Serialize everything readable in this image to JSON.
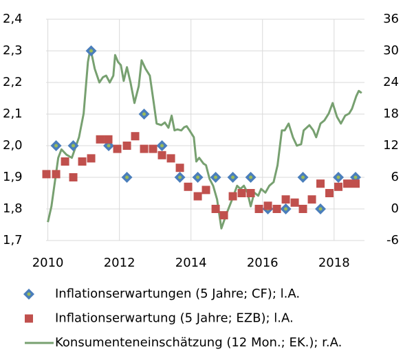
{
  "chart_data": {
    "type": "line",
    "xlim": [
      2009.95,
      2018.85
    ],
    "xticks": [
      2010,
      2012,
      2014,
      2016,
      2018
    ],
    "ylim": [
      1.7,
      2.4
    ],
    "yticks": [
      {
        "value": 1.7,
        "label": "1,7"
      },
      {
        "value": 1.8,
        "label": "1,8"
      },
      {
        "value": 1.9,
        "label": "1,9"
      },
      {
        "value": 2.0,
        "label": "2,0"
      },
      {
        "value": 2.1,
        "label": "2,1"
      },
      {
        "value": 2.2,
        "label": "2,2"
      },
      {
        "value": 2.3,
        "label": "2,3"
      },
      {
        "value": 2.4,
        "label": "2,4"
      }
    ],
    "y2lim": [
      -6,
      36
    ],
    "y2ticks": [
      -6,
      0,
      6,
      12,
      18,
      24,
      30,
      36
    ],
    "grid": true,
    "legend": "bottom",
    "series": [
      {
        "name": "Inflationserwartungen (5 Jahre; CF); l.A.",
        "color": "#4a7ebb",
        "marker": "diamond",
        "x": [
          2010.23,
          2010.71,
          2011.21,
          2011.7,
          2012.21,
          2012.69,
          2013.19,
          2013.69,
          2014.19,
          2014.69,
          2015.17,
          2015.67,
          2016.15,
          2016.65,
          2017.13,
          2017.62,
          2018.12,
          2018.6
        ],
        "values": [
          2.0,
          2.0,
          2.3,
          2.0,
          1.9,
          2.1,
          2.0,
          1.9,
          1.9,
          1.9,
          1.9,
          1.9,
          1.8,
          1.8,
          1.9,
          1.8,
          1.9,
          1.9
        ]
      },
      {
        "name": "Inflationserwartung (5 Jahre; EZB); l.A.",
        "color": "#c0504d",
        "marker": "square",
        "x": [
          2009.96,
          2010.23,
          2010.48,
          2010.71,
          2010.96,
          2011.21,
          2011.46,
          2011.69,
          2011.94,
          2012.21,
          2012.44,
          2012.69,
          2012.94,
          2013.19,
          2013.44,
          2013.69,
          2013.92,
          2014.19,
          2014.42,
          2014.69,
          2014.92,
          2015.17,
          2015.42,
          2015.67,
          2015.9,
          2016.15,
          2016.4,
          2016.65,
          2016.9,
          2017.13,
          2017.38,
          2017.62,
          2017.87,
          2018.12,
          2018.37,
          2018.6
        ],
        "values": [
          1.91,
          1.91,
          1.95,
          1.9,
          1.95,
          1.96,
          2.02,
          2.02,
          1.99,
          2.0,
          2.03,
          1.99,
          1.99,
          1.97,
          1.96,
          1.93,
          1.87,
          1.84,
          1.86,
          1.8,
          1.78,
          1.84,
          1.85,
          1.85,
          1.8,
          1.81,
          1.8,
          1.83,
          1.82,
          1.8,
          1.83,
          1.88,
          1.85,
          1.87,
          1.88,
          1.88
        ]
      },
      {
        "name": "Konsumenteneinschätzung (12 Mon.; EK.); r.A.",
        "color": "#77a070",
        "marker": "line",
        "axis": "y2",
        "x": [
          2010.0,
          2010.1,
          2010.29,
          2010.38,
          2010.52,
          2010.67,
          2010.87,
          2011.0,
          2011.12,
          2011.19,
          2011.31,
          2011.44,
          2011.54,
          2011.63,
          2011.73,
          2011.83,
          2011.88,
          2011.96,
          2012.04,
          2012.12,
          2012.21,
          2012.31,
          2012.42,
          2012.54,
          2012.62,
          2012.73,
          2012.85,
          2012.96,
          2013.04,
          2013.17,
          2013.27,
          2013.37,
          2013.46,
          2013.54,
          2013.62,
          2013.73,
          2013.81,
          2013.88,
          2013.96,
          2014.08,
          2014.15,
          2014.23,
          2014.35,
          2014.42,
          2014.52,
          2014.62,
          2014.73,
          2014.85,
          2015.0,
          2015.15,
          2015.29,
          2015.38,
          2015.48,
          2015.58,
          2015.67,
          2015.77,
          2015.88,
          2015.96,
          2016.08,
          2016.19,
          2016.31,
          2016.42,
          2016.54,
          2016.62,
          2016.73,
          2016.85,
          2016.96,
          2017.08,
          2017.15,
          2017.31,
          2017.42,
          2017.5,
          2017.62,
          2017.73,
          2017.85,
          2017.96,
          2018.08,
          2018.19,
          2018.31,
          2018.42,
          2018.5,
          2018.62,
          2018.69,
          2018.77
        ],
        "values": [
          -2.5,
          0.5,
          9.7,
          11.3,
          10.3,
          9.7,
          13.6,
          18.1,
          27.9,
          30.5,
          26.6,
          24.0,
          25.0,
          25.3,
          24.0,
          25.3,
          29.2,
          27.9,
          27.3,
          24.3,
          26.9,
          24.0,
          20.1,
          23.3,
          28.2,
          26.6,
          25.3,
          20.1,
          16.2,
          15.9,
          16.4,
          15.4,
          17.7,
          14.9,
          15.1,
          14.9,
          15.5,
          15.7,
          14.9,
          13.6,
          9.0,
          9.7,
          8.6,
          8.3,
          5.7,
          4.4,
          1.8,
          -3.7,
          -0.8,
          1.8,
          4.4,
          3.8,
          4.4,
          3.1,
          0.5,
          3.1,
          2.5,
          3.8,
          3.1,
          4.4,
          5.1,
          8.3,
          14.9,
          14.9,
          16.2,
          13.6,
          12.0,
          12.3,
          14.9,
          15.9,
          14.9,
          13.6,
          16.2,
          16.8,
          18.1,
          20.1,
          17.5,
          16.2,
          17.7,
          18.1,
          19.0,
          21.4,
          22.4,
          22.0
        ]
      }
    ]
  }
}
